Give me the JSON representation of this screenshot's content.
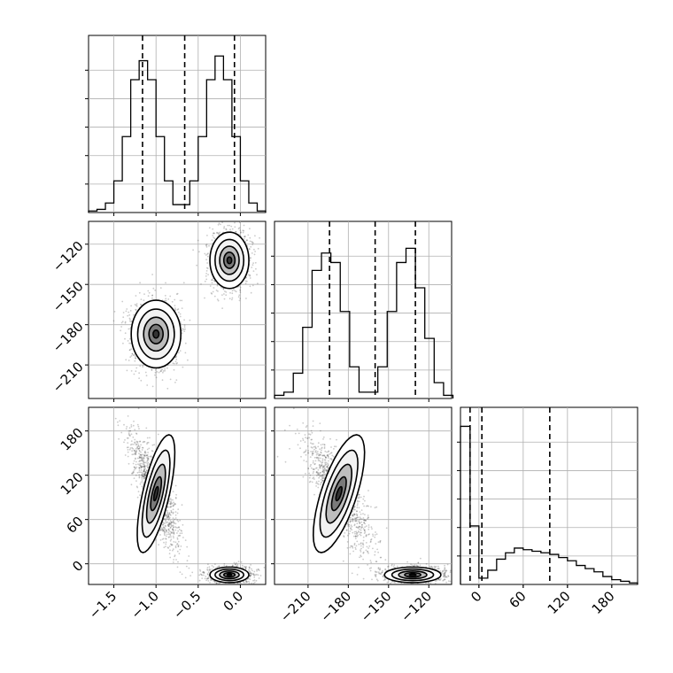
{
  "chart_data": {
    "type": "corner",
    "ranges": {
      "p0": [
        -1.8,
        0.3
      ],
      "p1": [
        -235,
        -103
      ],
      "p2": [
        -25,
        215
      ]
    },
    "y_range_in_p2": [
      -28,
      212
    ],
    "ticks": {
      "p0": [
        -1.5,
        -1.0,
        -0.5,
        0.0
      ],
      "p1": [
        -210,
        -180,
        -150,
        -120
      ],
      "p2": [
        0,
        60,
        120,
        180
      ]
    },
    "tick_labels": {
      "p0": [
        "−1.5",
        "−1.0",
        "−0.5",
        "0.0"
      ],
      "p1": [
        "−210",
        "−180",
        "−150",
        "−120"
      ],
      "p2": [
        "0",
        "60",
        "120",
        "180"
      ]
    },
    "quantiles": {
      "p0": [
        -1.16,
        -0.66,
        -0.07
      ],
      "p1": [
        -194,
        -160,
        -130
      ],
      "p2": [
        -12,
        4,
        96
      ]
    },
    "histograms": [
      {
        "param": "p0",
        "edges": [
          -1.8,
          -1.7,
          -1.6,
          -1.5,
          -1.4,
          -1.3,
          -1.2,
          -1.1,
          -1.0,
          -0.9,
          -0.8,
          -0.7,
          -0.6,
          -0.5,
          -0.4,
          -0.3,
          -0.2,
          -0.1,
          0.0,
          0.1,
          0.2,
          0.3
        ],
        "counts": [
          0.01,
          0.02,
          0.06,
          0.2,
          0.48,
          0.84,
          0.96,
          0.84,
          0.48,
          0.2,
          0.05,
          0.05,
          0.2,
          0.48,
          0.84,
          0.99,
          0.84,
          0.48,
          0.2,
          0.06,
          0.01
        ]
      },
      {
        "param": "p1",
        "edges": [
          -235,
          -228,
          -221,
          -214,
          -207,
          -200,
          -193,
          -186,
          -179,
          -172,
          -165,
          -158,
          -151,
          -144,
          -137,
          -130,
          -123,
          -116,
          -109,
          -102
        ],
        "counts": [
          0.02,
          0.04,
          0.16,
          0.45,
          0.81,
          0.92,
          0.86,
          0.55,
          0.2,
          0.04,
          0.04,
          0.2,
          0.55,
          0.86,
          0.95,
          0.7,
          0.38,
          0.1,
          0.02
        ]
      },
      {
        "param": "p2",
        "edges": [
          -25,
          -12,
          0,
          12,
          24,
          36,
          48,
          60,
          72,
          84,
          96,
          108,
          120,
          132,
          144,
          156,
          168,
          180,
          192,
          204,
          215
        ],
        "counts": [
          1.0,
          0.37,
          0.04,
          0.09,
          0.16,
          0.2,
          0.23,
          0.22,
          0.21,
          0.2,
          0.19,
          0.17,
          0.15,
          0.12,
          0.1,
          0.08,
          0.05,
          0.03,
          0.02,
          0.01
        ]
      }
    ],
    "clusters": [
      {
        "p0": -1.0,
        "p1": -187,
        "p2": 95,
        "sd_p0": 0.14,
        "sd_p1": 12,
        "sd_p2": 40,
        "weight": 0.5
      },
      {
        "p0": -0.13,
        "p1": -132,
        "p2": -15,
        "sd_p0": 0.11,
        "sd_p1": 10,
        "sd_p2": 5,
        "weight": 0.5
      }
    ]
  }
}
